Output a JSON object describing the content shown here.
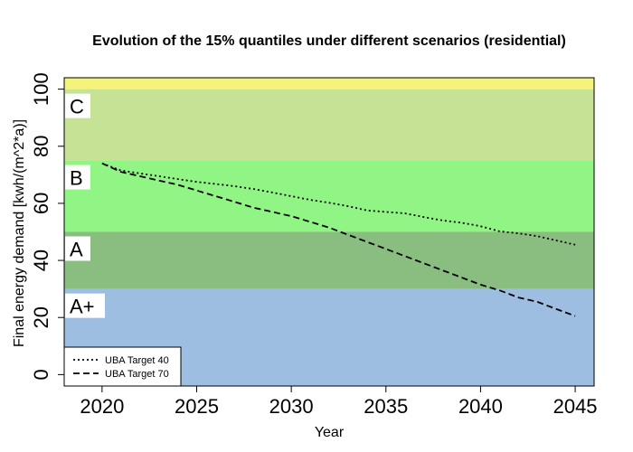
{
  "chart_data": {
    "type": "line",
    "title": "Evolution of the 15% quantiles under different scenarios (residential)",
    "xlabel": "Year",
    "ylabel": "Final energy demand [kwh/(m^2*a)]",
    "xlim": [
      2018,
      2046
    ],
    "ylim": [
      -4,
      104
    ],
    "xticks": [
      2020,
      2025,
      2030,
      2035,
      2040,
      2045
    ],
    "yticks": [
      0,
      20,
      40,
      60,
      80,
      100
    ],
    "grid": false,
    "legend_position": "bottom-left",
    "bands": [
      {
        "label": "A+",
        "from": -4,
        "to": 30,
        "color": "#9dbee0"
      },
      {
        "label": "A",
        "from": 30,
        "to": 50,
        "color": "#8abd80"
      },
      {
        "label": "B",
        "from": 50,
        "to": 75,
        "color": "#90f584"
      },
      {
        "label": "C",
        "from": 75,
        "to": 100,
        "color": "#c6e294"
      },
      {
        "label": "",
        "from": 100,
        "to": 104,
        "color": "#f4f47a"
      }
    ],
    "x": [
      2020,
      2021,
      2022,
      2023,
      2024,
      2025,
      2026,
      2027,
      2028,
      2029,
      2030,
      2031,
      2032,
      2033,
      2034,
      2035,
      2036,
      2037,
      2038,
      2039,
      2040,
      2041,
      2042,
      2043,
      2044,
      2045
    ],
    "series": [
      {
        "name": "UBA Target 40",
        "style": "dotted",
        "color": "#000000",
        "values": [
          74,
          71.5,
          70.5,
          69.5,
          68.5,
          67.5,
          66.8,
          66,
          65,
          63.8,
          62.5,
          61.2,
          60.2,
          59,
          57.5,
          57,
          56.5,
          55.2,
          54,
          53.2,
          52,
          50.2,
          49.5,
          48.5,
          47,
          45.5
        ]
      },
      {
        "name": "UBA Target 70",
        "style": "dashed",
        "color": "#000000",
        "values": [
          74,
          71,
          69.5,
          68,
          66.5,
          64.5,
          62.5,
          60.5,
          58.5,
          57,
          55.5,
          53.5,
          51.5,
          49,
          46.5,
          44,
          41.5,
          39,
          36.5,
          34,
          31.5,
          29.5,
          27,
          25.5,
          23,
          20.5
        ]
      }
    ]
  }
}
